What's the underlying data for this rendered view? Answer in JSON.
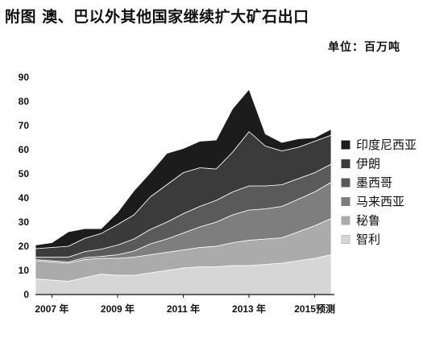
{
  "title": "附图 澳、巴以外其他国家继续扩大矿石出口",
  "unit_label": "单位：百万吨",
  "chart_data": {
    "type": "area",
    "stacked": true,
    "x": [
      2006.5,
      2007,
      2007.5,
      2008,
      2008.5,
      2009,
      2009.5,
      2010,
      2010.5,
      2011,
      2011.5,
      2012,
      2012.5,
      2013,
      2013.5,
      2014,
      2014.5,
      2015,
      2015.5
    ],
    "x_tick_labels": [
      "2007 年",
      "2009 年",
      "2011 年",
      "2013 年",
      "2015预测"
    ],
    "x_tick_positions": [
      2007,
      2009,
      2011,
      2013,
      2015
    ],
    "ylim": [
      0,
      90
    ],
    "yticks": [
      0,
      10,
      20,
      30,
      40,
      50,
      60,
      70,
      80,
      90
    ],
    "series": [
      {
        "name": "智利",
        "color": "#d6d6d6",
        "values": [
          6.5,
          6,
          5.5,
          7,
          8.5,
          8,
          8,
          9,
          10,
          11,
          11.5,
          11.5,
          12,
          12,
          12.5,
          13,
          14,
          15,
          16.5
        ]
      },
      {
        "name": "秘鲁",
        "color": "#ababab",
        "values": [
          7.5,
          7.5,
          7.5,
          7.5,
          6.5,
          7,
          7.5,
          7.5,
          7.5,
          7.5,
          8,
          8.5,
          9.5,
          10.5,
          10.5,
          10.5,
          12,
          13.5,
          15
        ]
      },
      {
        "name": "马来西亚",
        "color": "#7e7e7e",
        "values": [
          0.5,
          0.5,
          0.5,
          0.8,
          0.8,
          1.5,
          2.5,
          4.5,
          5.5,
          7,
          8.5,
          10,
          11.5,
          12.5,
          12.5,
          13,
          13.5,
          14,
          15
        ]
      },
      {
        "name": "墨西哥",
        "color": "#5a5a5a",
        "values": [
          1,
          1.5,
          2,
          2.5,
          3,
          4,
          5,
          6,
          7,
          8,
          8.5,
          9,
          9.5,
          10,
          9.5,
          9,
          8.5,
          8,
          7.5
        ]
      },
      {
        "name": "伊朗",
        "color": "#3b3b3b",
        "values": [
          3.5,
          4,
          4.5,
          5.5,
          6.5,
          8.5,
          10,
          13.5,
          15.5,
          17,
          16,
          13,
          16.5,
          22.5,
          16.5,
          14,
          13,
          13,
          12
        ]
      },
      {
        "name": "印度尼西亚",
        "color": "#1c1c1c",
        "values": [
          1.5,
          2,
          6,
          4,
          2,
          5,
          10,
          10,
          13,
          10,
          11,
          12,
          18,
          17.5,
          5,
          3.5,
          3.5,
          1.5,
          2.5
        ]
      }
    ],
    "legend_position": "right"
  }
}
